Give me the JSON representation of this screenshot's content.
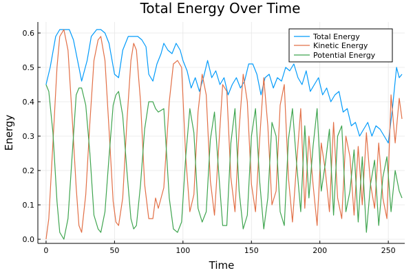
{
  "chart_data": {
    "type": "line",
    "title": "Total Energy Over Time",
    "xlabel": "Time",
    "ylabel": "Energy",
    "xlim": [
      -6,
      262
    ],
    "ylim": [
      -0.012,
      0.632
    ],
    "x_ticks": [
      0,
      50,
      100,
      150,
      200,
      250
    ],
    "x_tick_labels": [
      "0",
      "50",
      "100",
      "150",
      "200",
      "250"
    ],
    "y_ticks": [
      0.0,
      0.1,
      0.2,
      0.3,
      0.4,
      0.5,
      0.6
    ],
    "y_tick_labels": [
      "0.0",
      "0.1",
      "0.2",
      "0.3",
      "0.4",
      "0.5",
      "0.6"
    ],
    "grid": true,
    "legend_position": "top-right",
    "series": [
      {
        "name": "Total Energy",
        "color": "#009AFA",
        "x": [
          0,
          3,
          7,
          10,
          13,
          17,
          20,
          24,
          26,
          30,
          33,
          37,
          40,
          43,
          46,
          50,
          53,
          56,
          60,
          64,
          67,
          70,
          73,
          75,
          78,
          81,
          84,
          86,
          89,
          92,
          95,
          98,
          100,
          103,
          106,
          109,
          112,
          115,
          118,
          121,
          124,
          127,
          130,
          133,
          136,
          139,
          142,
          145,
          148,
          151,
          154,
          157,
          160,
          163,
          166,
          169,
          172,
          175,
          178,
          181,
          184,
          187,
          190,
          193,
          196,
          199,
          202,
          205,
          208,
          211,
          214,
          217,
          220,
          223,
          226,
          229,
          232,
          235,
          238,
          241,
          244,
          247,
          250,
          253,
          256,
          258,
          260
        ],
        "values": [
          0.45,
          0.5,
          0.59,
          0.61,
          0.61,
          0.61,
          0.58,
          0.5,
          0.46,
          0.52,
          0.59,
          0.61,
          0.61,
          0.6,
          0.57,
          0.48,
          0.47,
          0.55,
          0.59,
          0.59,
          0.59,
          0.58,
          0.56,
          0.48,
          0.46,
          0.51,
          0.54,
          0.57,
          0.55,
          0.54,
          0.57,
          0.55,
          0.52,
          0.49,
          0.44,
          0.47,
          0.43,
          0.47,
          0.52,
          0.47,
          0.49,
          0.45,
          0.47,
          0.42,
          0.45,
          0.47,
          0.44,
          0.46,
          0.51,
          0.51,
          0.48,
          0.42,
          0.47,
          0.48,
          0.44,
          0.47,
          0.46,
          0.5,
          0.49,
          0.51,
          0.47,
          0.45,
          0.49,
          0.43,
          0.45,
          0.47,
          0.42,
          0.44,
          0.4,
          0.42,
          0.43,
          0.37,
          0.38,
          0.33,
          0.34,
          0.3,
          0.32,
          0.34,
          0.3,
          0.33,
          0.32,
          0.3,
          0.28,
          0.38,
          0.5,
          0.47,
          0.48
        ]
      },
      {
        "name": "Kinetic Energy",
        "color": "#E26F46",
        "x": [
          0,
          2,
          5,
          8,
          10,
          13,
          16,
          19,
          22,
          24,
          26,
          29,
          32,
          35,
          38,
          40,
          43,
          46,
          49,
          51,
          53,
          56,
          59,
          62,
          64,
          66,
          69,
          72,
          75,
          78,
          80,
          82,
          86,
          90,
          93,
          96,
          99,
          102,
          105,
          108,
          111,
          114,
          117,
          120,
          123,
          126,
          129,
          132,
          135,
          138,
          141,
          144,
          147,
          150,
          153,
          156,
          159,
          162,
          165,
          168,
          171,
          174,
          177,
          180,
          183,
          186,
          189,
          192,
          195,
          198,
          201,
          204,
          207,
          210,
          213,
          216,
          219,
          222,
          225,
          228,
          231,
          234,
          237,
          240,
          243,
          246,
          249,
          252,
          255,
          258,
          260
        ],
        "values": [
          0.0,
          0.06,
          0.28,
          0.5,
          0.59,
          0.61,
          0.55,
          0.36,
          0.15,
          0.04,
          0.02,
          0.13,
          0.34,
          0.52,
          0.58,
          0.59,
          0.52,
          0.32,
          0.11,
          0.05,
          0.04,
          0.12,
          0.34,
          0.52,
          0.57,
          0.55,
          0.4,
          0.16,
          0.06,
          0.06,
          0.12,
          0.09,
          0.15,
          0.4,
          0.51,
          0.52,
          0.5,
          0.24,
          0.08,
          0.13,
          0.37,
          0.48,
          0.42,
          0.17,
          0.07,
          0.26,
          0.45,
          0.43,
          0.18,
          0.08,
          0.32,
          0.48,
          0.4,
          0.16,
          0.08,
          0.29,
          0.47,
          0.33,
          0.1,
          0.14,
          0.39,
          0.45,
          0.18,
          0.05,
          0.22,
          0.38,
          0.09,
          0.3,
          0.16,
          0.04,
          0.28,
          0.2,
          0.08,
          0.34,
          0.12,
          0.06,
          0.3,
          0.24,
          0.07,
          0.27,
          0.1,
          0.31,
          0.16,
          0.09,
          0.28,
          0.12,
          0.06,
          0.42,
          0.28,
          0.41,
          0.35
        ]
      },
      {
        "name": "Potential Energy",
        "color": "#3EA44E",
        "x": [
          0,
          2,
          5,
          8,
          10,
          13,
          16,
          19,
          22,
          24,
          26,
          29,
          32,
          35,
          38,
          40,
          43,
          46,
          49,
          51,
          53,
          56,
          59,
          62,
          64,
          66,
          69,
          72,
          75,
          78,
          80,
          82,
          86,
          90,
          93,
          96,
          99,
          102,
          105,
          108,
          111,
          114,
          117,
          120,
          123,
          126,
          129,
          132,
          135,
          138,
          141,
          144,
          147,
          150,
          153,
          156,
          159,
          162,
          165,
          168,
          171,
          174,
          177,
          180,
          183,
          186,
          189,
          192,
          195,
          198,
          201,
          204,
          207,
          210,
          213,
          216,
          219,
          222,
          225,
          228,
          231,
          234,
          237,
          240,
          243,
          246,
          249,
          252,
          255,
          258,
          260
        ],
        "values": [
          0.45,
          0.43,
          0.31,
          0.11,
          0.02,
          0.0,
          0.06,
          0.24,
          0.42,
          0.44,
          0.44,
          0.39,
          0.25,
          0.07,
          0.03,
          0.02,
          0.08,
          0.24,
          0.39,
          0.42,
          0.43,
          0.36,
          0.2,
          0.06,
          0.03,
          0.04,
          0.16,
          0.32,
          0.4,
          0.4,
          0.38,
          0.37,
          0.38,
          0.12,
          0.03,
          0.02,
          0.05,
          0.24,
          0.38,
          0.31,
          0.09,
          0.05,
          0.08,
          0.29,
          0.37,
          0.2,
          0.04,
          0.04,
          0.28,
          0.38,
          0.14,
          0.03,
          0.07,
          0.3,
          0.38,
          0.17,
          0.03,
          0.12,
          0.34,
          0.3,
          0.08,
          0.04,
          0.29,
          0.38,
          0.22,
          0.08,
          0.33,
          0.12,
          0.27,
          0.38,
          0.14,
          0.22,
          0.32,
          0.07,
          0.3,
          0.33,
          0.08,
          0.14,
          0.26,
          0.05,
          0.24,
          0.02,
          0.16,
          0.23,
          0.04,
          0.18,
          0.24,
          0.08,
          0.2,
          0.14,
          0.12
        ]
      }
    ]
  }
}
